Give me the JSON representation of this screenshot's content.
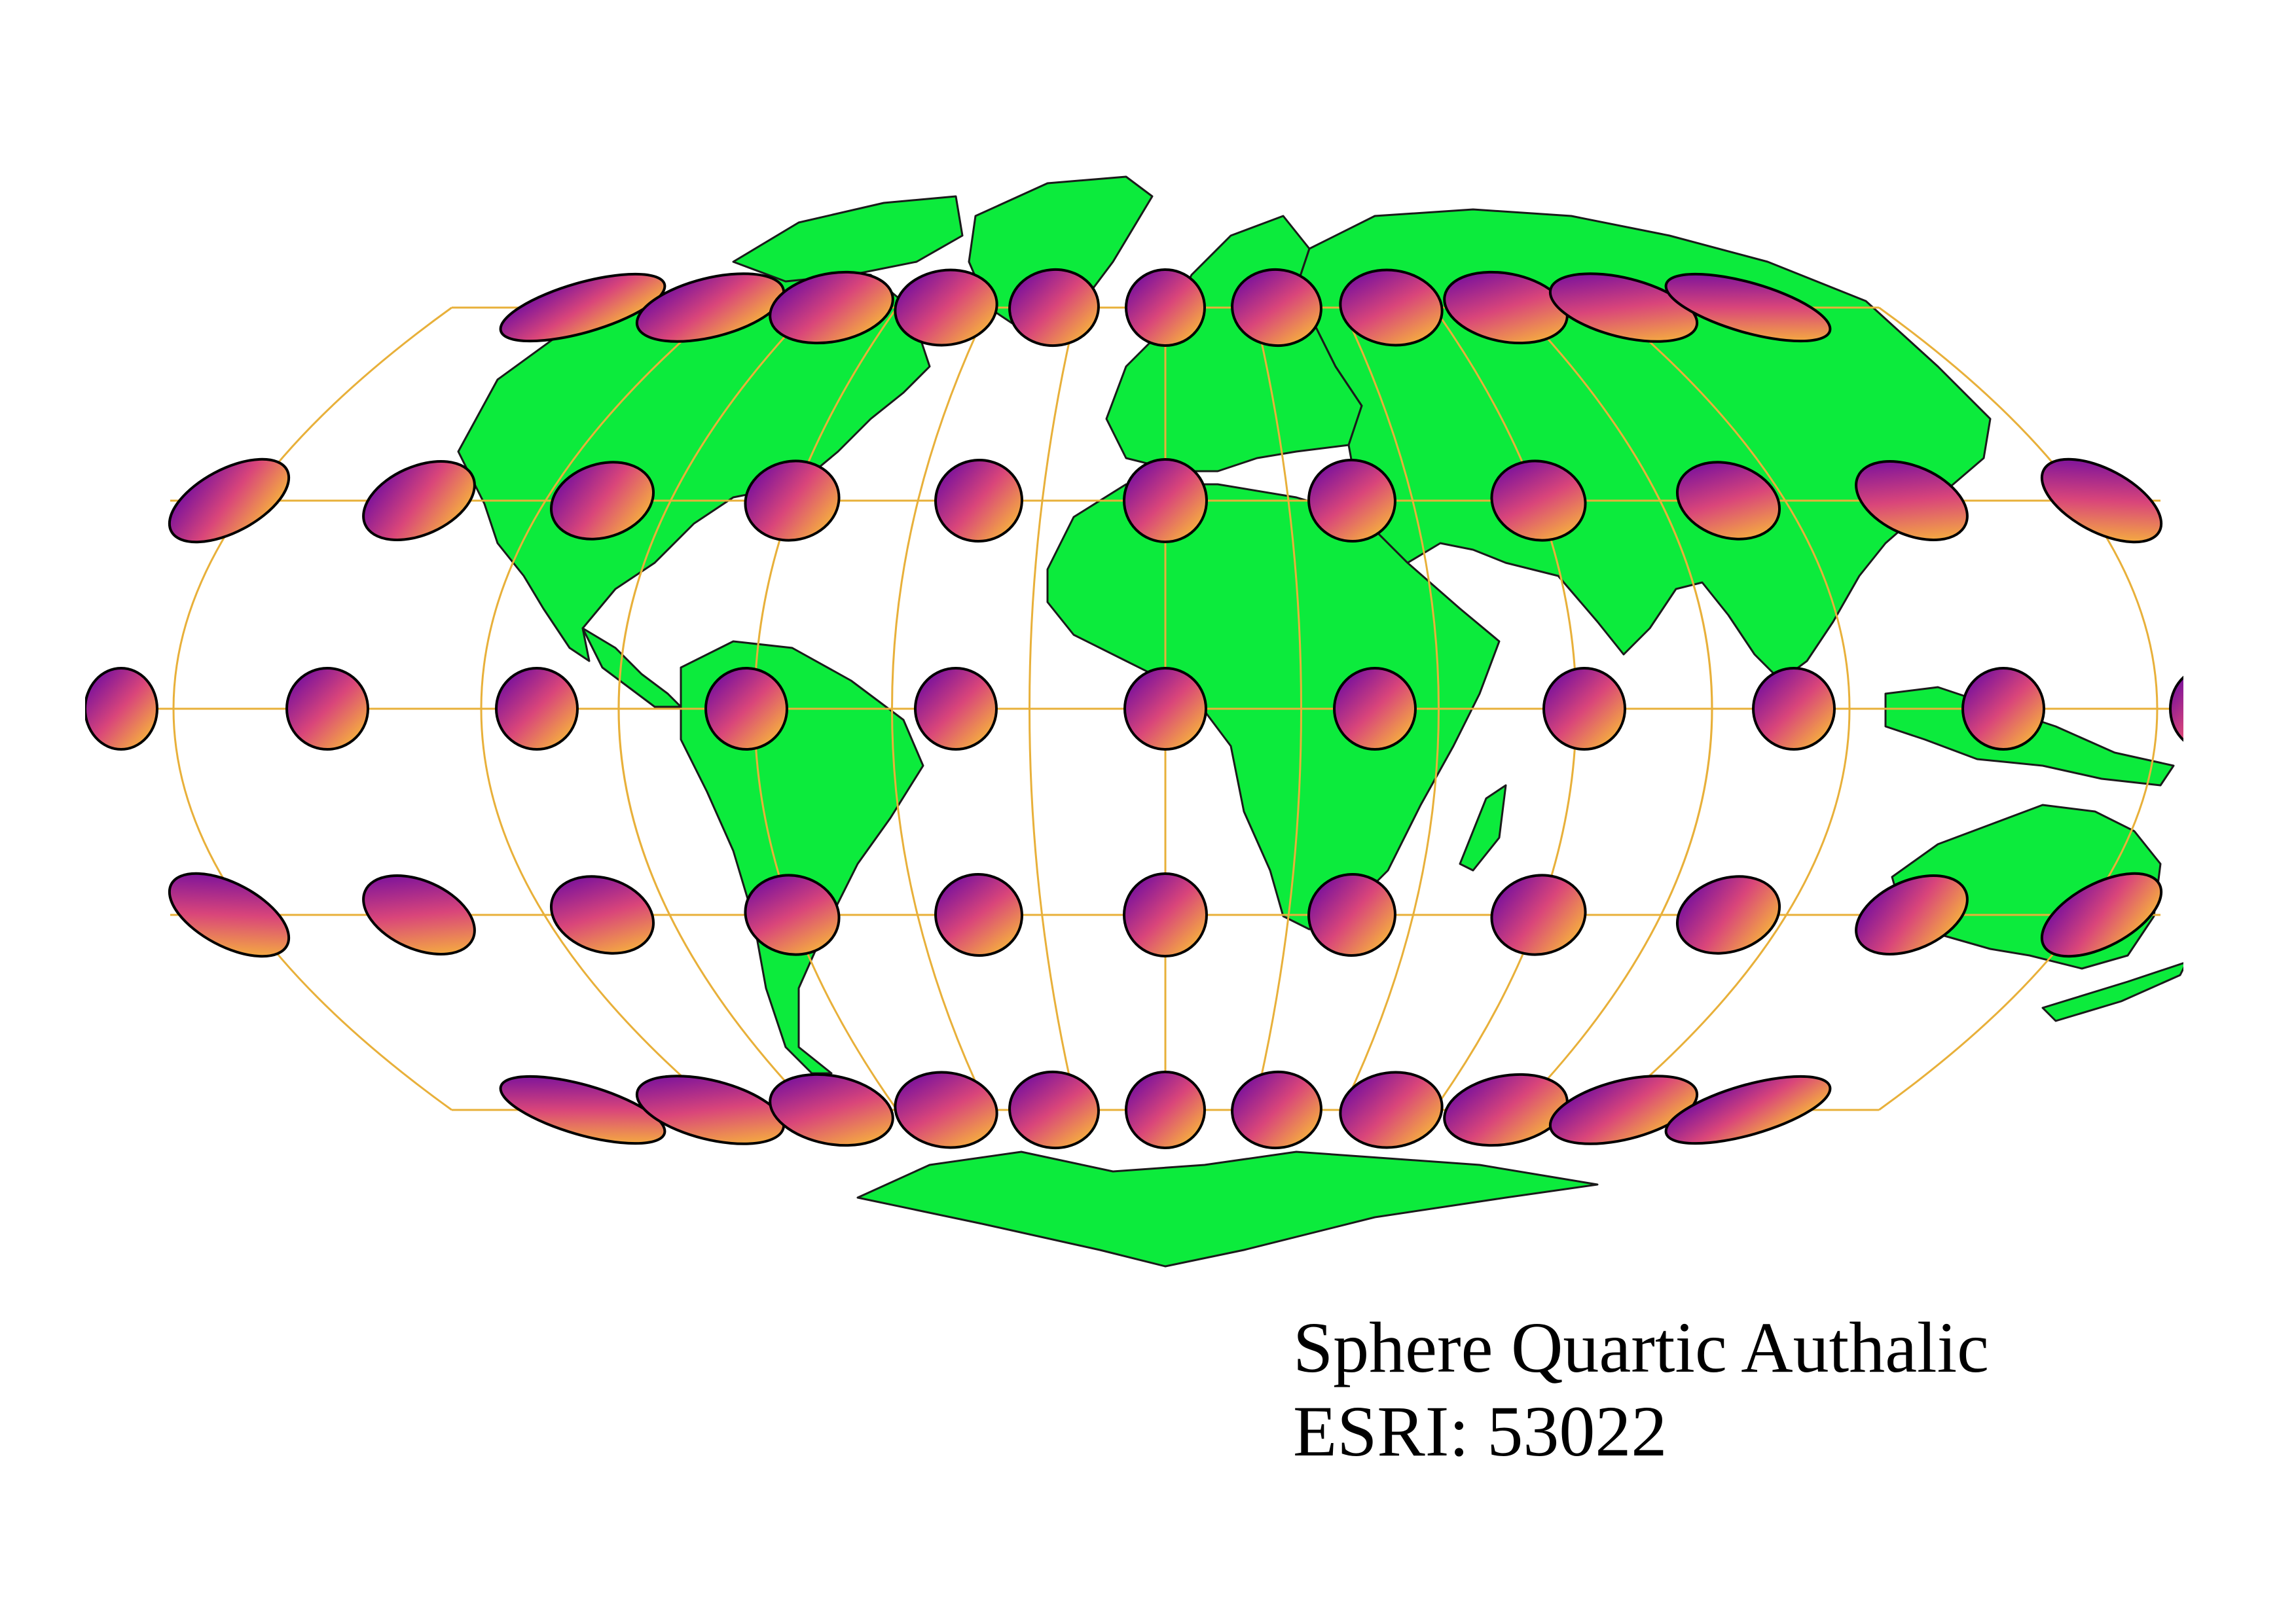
{
  "map": {
    "title": "Sphere Quartic Authalic",
    "code": "ESRI: 53022",
    "projection": "quartic authalic",
    "features": [
      "world-countries",
      "graticule",
      "tissot-indicatrices"
    ],
    "colors": {
      "land": "#0CEB3C",
      "border": "#1a1a1a",
      "graticule": "#E8B03A",
      "ellipse_gradient_start": "#5A00A8",
      "ellipse_gradient_mid": "#D9457A",
      "ellipse_gradient_end": "#FFD32A",
      "background": "#ffffff"
    },
    "graticule": {
      "meridian_step_deg": 30,
      "parallel_step_deg": 30
    },
    "tissot": {
      "latitudes_deg": [
        60,
        30,
        0,
        -30,
        -60
      ],
      "longitudes_deg": [
        -150,
        -120,
        -90,
        -60,
        -30,
        0,
        30,
        60,
        90,
        120,
        150
      ]
    }
  }
}
